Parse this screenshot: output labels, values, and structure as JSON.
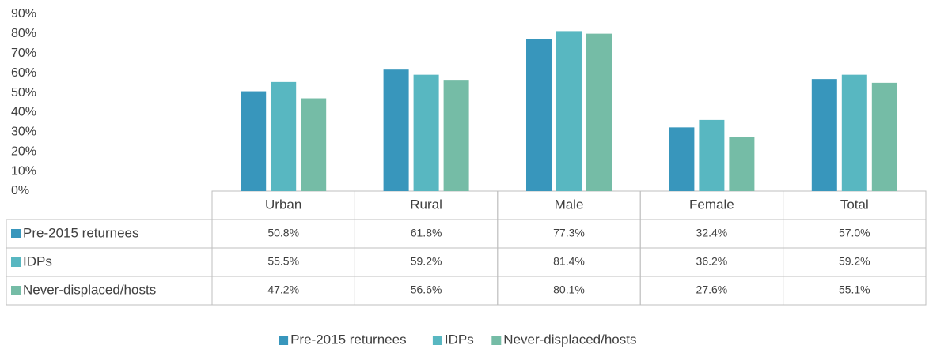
{
  "chart_data": {
    "type": "bar",
    "categories": [
      "Urban",
      "Rural",
      "Male",
      "Female",
      "Total"
    ],
    "series": [
      {
        "name": "Pre-2015 returnees",
        "color": "#3896bc",
        "values": [
          50.8,
          61.8,
          77.3,
          32.4,
          57.0
        ],
        "value_labels": [
          "50.8%",
          "61.8%",
          "77.3%",
          "32.4%",
          "57.0%"
        ]
      },
      {
        "name": "IDPs",
        "color": "#58b7c1",
        "values": [
          55.5,
          59.2,
          81.4,
          36.2,
          59.2
        ],
        "value_labels": [
          "55.5%",
          "59.2%",
          "81.4%",
          "36.2%",
          "59.2%"
        ]
      },
      {
        "name": "Never-displaced/hosts",
        "color": "#75bca6",
        "values": [
          47.2,
          56.6,
          80.1,
          27.6,
          55.1
        ],
        "value_labels": [
          "47.2%",
          "56.6%",
          "80.1%",
          "27.6%",
          "55.1%"
        ]
      }
    ],
    "ylim": [
      0,
      90
    ],
    "yticks": [
      {
        "value": 0,
        "label": "0%"
      },
      {
        "value": 10,
        "label": "10%"
      },
      {
        "value": 20,
        "label": "20%"
      },
      {
        "value": 30,
        "label": "30%"
      },
      {
        "value": 40,
        "label": "40%"
      },
      {
        "value": 50,
        "label": "50%"
      },
      {
        "value": 60,
        "label": "60%"
      },
      {
        "value": 70,
        "label": "70%"
      },
      {
        "value": 80,
        "label": "80%"
      },
      {
        "value": 90,
        "label": "90%"
      }
    ],
    "grid": false,
    "legend": "bottom"
  }
}
